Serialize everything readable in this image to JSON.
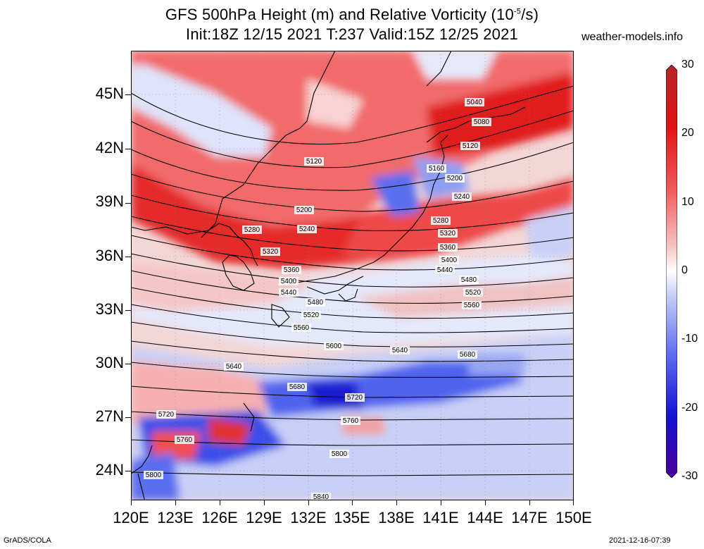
{
  "header": {
    "title_prefix": "GFS 500hPa Height (m) and Relative Vorticity (10",
    "title_exp": "-5",
    "title_suffix": "/s)",
    "subtitle": "Init:18Z 12/15 2021 T:237 Valid:15Z 12/25 2021",
    "site": "weather-models.info"
  },
  "axes": {
    "lat_labels": [
      "45N",
      "42N",
      "39N",
      "36N",
      "33N",
      "30N",
      "27N",
      "24N"
    ],
    "lon_labels": [
      "120E",
      "123E",
      "126E",
      "129E",
      "132E",
      "135E",
      "138E",
      "141E",
      "144E",
      "147E",
      "150E"
    ]
  },
  "colorbar": {
    "labels": [
      "30",
      "20",
      "10",
      "0",
      "-10",
      "-20",
      "-30"
    ],
    "colors": [
      "#4b0096",
      "#1414d2",
      "#5f6ef0",
      "#c3cdf7",
      "#ffffff",
      "#f7c3c3",
      "#f05a5a",
      "#e01414",
      "#b42828"
    ]
  },
  "contours": [
    {
      "label": "5040"
    },
    {
      "label": "5080"
    },
    {
      "label": "5120"
    },
    {
      "label": "5120"
    },
    {
      "label": "5160"
    },
    {
      "label": "5200"
    },
    {
      "label": "5200"
    },
    {
      "label": "5240"
    },
    {
      "label": "5240"
    },
    {
      "label": "5280"
    },
    {
      "label": "5280"
    },
    {
      "label": "5320"
    },
    {
      "label": "5320"
    },
    {
      "label": "5360"
    },
    {
      "label": "5360"
    },
    {
      "label": "5400"
    },
    {
      "label": "5400"
    },
    {
      "label": "5440"
    },
    {
      "label": "5440"
    },
    {
      "label": "5480"
    },
    {
      "label": "5480"
    },
    {
      "label": "5520"
    },
    {
      "label": "5520"
    },
    {
      "label": "5560"
    },
    {
      "label": "5560"
    },
    {
      "label": "5600"
    },
    {
      "label": "5640"
    },
    {
      "label": "5640"
    },
    {
      "label": "5680"
    },
    {
      "label": "5680"
    },
    {
      "label": "5720"
    },
    {
      "label": "5720"
    },
    {
      "label": "5760"
    },
    {
      "label": "5760"
    },
    {
      "label": "5800"
    },
    {
      "label": "5800"
    },
    {
      "label": "5840"
    }
  ],
  "footer": {
    "left": "GrADS/COLA",
    "right": "2021-12-16-07:39"
  }
}
